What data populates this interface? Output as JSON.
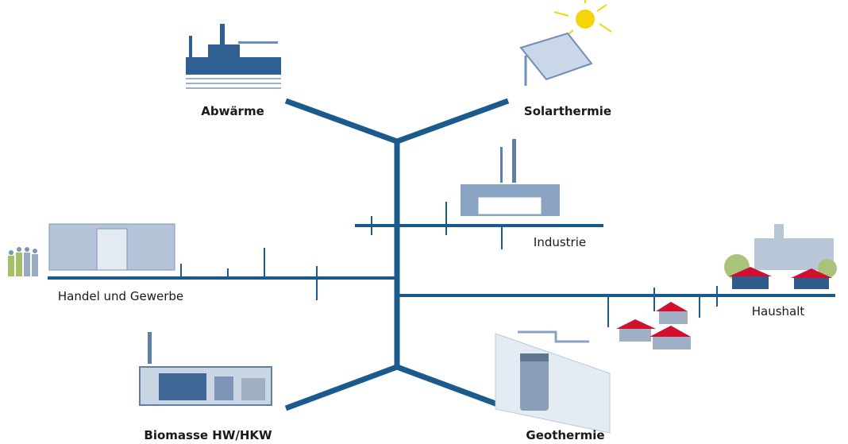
{
  "nodes": [
    {
      "label": "Abwärme"
    },
    {
      "label": "Solarthermie"
    },
    {
      "label": "Industrie"
    },
    {
      "label": "Handel und Gewerbe"
    },
    {
      "label": "Haushalt"
    },
    {
      "label": "Biomasse HW/HKW"
    },
    {
      "label": "Geothermie"
    }
  ]
}
